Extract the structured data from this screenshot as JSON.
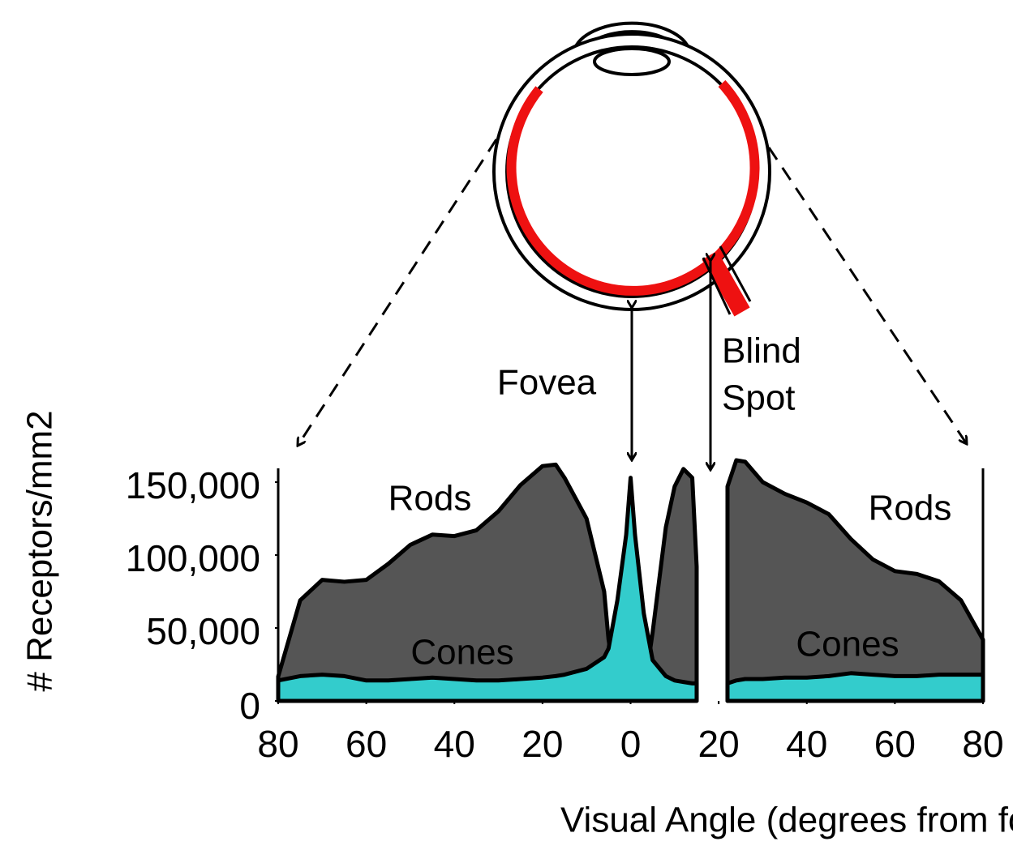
{
  "chart_data": {
    "type": "area",
    "x": [
      -80,
      -75,
      -70,
      -65,
      -60,
      -55,
      -50,
      -45,
      -40,
      -35,
      -30,
      -25,
      -20,
      -17,
      -15,
      -10,
      -6,
      -5,
      -3,
      -1,
      0,
      1,
      3,
      5,
      8,
      10,
      12,
      14,
      15,
      16,
      21,
      22,
      24,
      26,
      30,
      35,
      40,
      45,
      50,
      55,
      60,
      65,
      70,
      75,
      80
    ],
    "series": [
      {
        "name": "Rods",
        "color": "#555555",
        "values": [
          16700,
          69000,
          83000,
          81700,
          83000,
          94000,
          107000,
          114000,
          113000,
          117000,
          130000,
          148000,
          161000,
          162000,
          153000,
          125000,
          75000,
          42000,
          5000,
          0,
          0,
          0,
          5000,
          47000,
          119000,
          147000,
          159000,
          153000,
          92000,
          null,
          null,
          147000,
          165000,
          164000,
          150000,
          142000,
          136000,
          128000,
          111000,
          97000,
          89000,
          87000,
          82000,
          69000,
          42000
        ]
      },
      {
        "name": "Cones",
        "color": "#33cccc",
        "values": [
          14000,
          17000,
          18000,
          17000,
          14000,
          14000,
          15000,
          16000,
          15000,
          14000,
          14000,
          15000,
          16000,
          17000,
          18000,
          22000,
          30000,
          36000,
          69000,
          114000,
          153000,
          114000,
          60000,
          28000,
          17000,
          14000,
          13000,
          12000,
          12000,
          null,
          null,
          12000,
          14000,
          15000,
          15000,
          16000,
          16000,
          17000,
          19000,
          18000,
          17000,
          17000,
          18000,
          18000,
          18000
        ]
      }
    ],
    "xlim": [
      -80,
      80
    ],
    "xticks": [
      {
        "value": -80,
        "label": "80"
      },
      {
        "value": -60,
        "label": "60"
      },
      {
        "value": -40,
        "label": "40"
      },
      {
        "value": -20,
        "label": "20"
      },
      0,
      20,
      40,
      60,
      80
    ],
    "ylim": [
      0,
      150000
    ],
    "yticks": [
      0,
      {
        "value": 50000,
        "label": "50,000"
      },
      {
        "value": 100000,
        "label": "100,000"
      },
      {
        "value": 150000,
        "label": "150,000"
      }
    ],
    "x_label": "Visual Angle (degrees from fovea)",
    "y_label": "# Receptors/mm2",
    "annotations": {
      "rods_left": "Rods",
      "rods_right": "Rods",
      "cones_left": "Cones",
      "cones_right": "Cones",
      "fovea": "Fovea",
      "blind_spot": [
        "Blind",
        "Spot"
      ]
    }
  }
}
